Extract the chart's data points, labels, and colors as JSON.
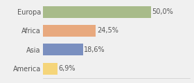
{
  "categories": [
    "America",
    "Asia",
    "Africa",
    "Europa"
  ],
  "values": [
    6.9,
    18.6,
    24.5,
    50.0
  ],
  "labels": [
    "6,9%",
    "18,6%",
    "24,5%",
    "50,0%"
  ],
  "bar_colors": [
    "#f5d57a",
    "#7a8fbf",
    "#e8a97e",
    "#a8bb8a"
  ],
  "background_color": "#f0f0f0",
  "xlim": [
    0,
    68
  ],
  "bar_height": 0.62,
  "label_fontsize": 7.0,
  "tick_fontsize": 7.0,
  "label_color": "#555555",
  "tick_color": "#555555",
  "spine_color": "#cccccc"
}
